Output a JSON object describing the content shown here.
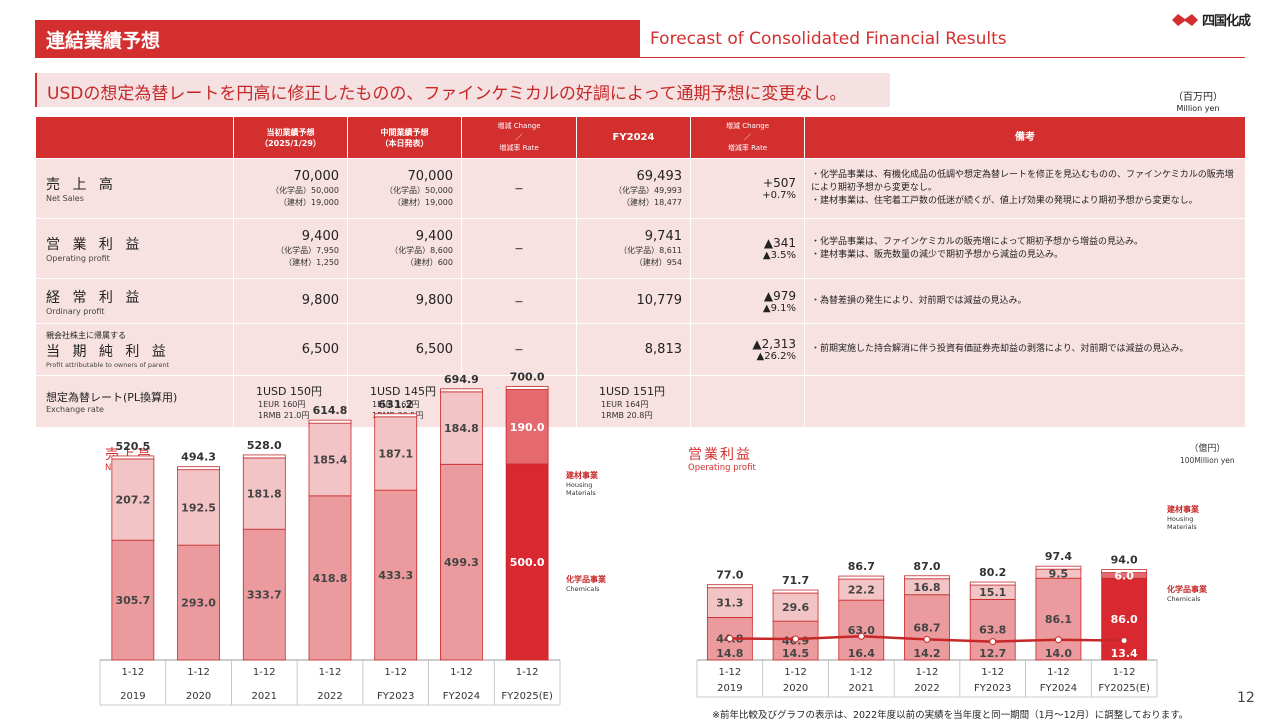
{
  "header": {
    "title_jp": "連結業績予想",
    "title_en": "Forecast of Consolidated Financial Results",
    "logo_text": "四国化成",
    "accent_color": "#d32f2f"
  },
  "headline": "USDの想定為替レートを円高に修正したものの、ファインケミカルの好調によって通期予想に変更なし。",
  "unit": {
    "jp": "（百万円）",
    "en": "Million yen"
  },
  "table": {
    "headers": {
      "col1": "当初業績予想",
      "col1b": "（2025/1/29）",
      "col2": "中間業績予想",
      "col2b": "（本日発表）",
      "chg1a": "増減 Change",
      "chg1b": "／",
      "chg1c": "増減率 Rate",
      "fy": "FY2024",
      "chg2a": "増減 Change",
      "chg2b": "／",
      "chg2c": "増減率 Rate",
      "remarks": "備考"
    },
    "rows": [
      {
        "label_jp": "売 上 高",
        "label_en": "Net Sales",
        "initial": "70,000",
        "initial_sub1": "（化学品）50,000",
        "initial_sub2": "（建材）19,000",
        "interim": "70,000",
        "interim_sub1": "（化学品）50,000",
        "interim_sub2": "（建材）19,000",
        "change1": "－",
        "fy2024": "69,493",
        "fy_sub1": "（化学品）49,993",
        "fy_sub2": "（建材）18,477",
        "change2": "+507",
        "rate2": "+0.7%",
        "note1": "・化学品事業は、有機化成品の低調や想定為替レートを修正を見込むものの、ファインケミカルの販売増により期初予想から変更なし。",
        "note2": "・建材事業は、住宅着工戸数の低迷が続くが、値上げ効果の発現により期初予想から変更なし。"
      },
      {
        "label_jp": "営 業 利 益",
        "label_en": "Operating profit",
        "initial": "9,400",
        "initial_sub1": "（化学品）7,950",
        "initial_sub2": "（建材）1,250",
        "interim": "9,400",
        "interim_sub1": "（化学品）8,600",
        "interim_sub2": "（建材）600",
        "change1": "－",
        "fy2024": "9,741",
        "fy_sub1": "（化学品）8,611",
        "fy_sub2": "（建材）954",
        "change2": "▲341",
        "rate2": "▲3.5%",
        "note1": "・化学品事業は、ファインケミカルの販売増によって期初予想から増益の見込み。",
        "note2": "・建材事業は、販売数量の減少で期初予想から減益の見込み。"
      },
      {
        "label_jp": "経 常 利 益",
        "label_en": "Ordinary profit",
        "initial": "9,800",
        "interim": "9,800",
        "change1": "－",
        "fy2024": "10,779",
        "change2": "▲979",
        "rate2": "▲9.1%",
        "note1": "・為替差損の発生により、対前期では減益の見込み。"
      },
      {
        "label_small": "親会社株主に帰属する",
        "label_jp": "当 期 純 利 益",
        "label_en": "Profit attributable to owners of parent",
        "initial": "6,500",
        "interim": "6,500",
        "change1": "－",
        "fy2024": "8,813",
        "change2": "▲2,313",
        "rate2": "▲26.2%",
        "note1": "・前期実施した持合解消に伴う投資有価証券売却益の剥落により、対前期では減益の見込み。"
      },
      {
        "label_jp": "想定為替レート(PL換算用)",
        "label_en": "Exchange rate",
        "initial": "1USD 150円",
        "initial_sub1": "1EUR 160円",
        "initial_sub2": "1RMB 21.0円",
        "interim": "1USD 145円",
        "interim_sub1": "1EUR 165円",
        "interim_sub2": "1RMB 20.5円",
        "fy2024": "1USD 151円",
        "fy_sub1": "1EUR 164円",
        "fy_sub2": "1RMB 20.8円"
      }
    ]
  },
  "chart_data": [
    {
      "type": "bar",
      "title": "売上高",
      "subtitle": "Net sales",
      "categories": [
        "1-12",
        "1-12",
        "1-12",
        "1-12",
        "1-12",
        "1-12",
        "1-12"
      ],
      "category_years": [
        "2019",
        "2020",
        "2021",
        "2022",
        "FY2023",
        "FY2024",
        "FY2025(E)"
      ],
      "series": [
        {
          "name": "化学品事業",
          "name_en": "Chemicals",
          "values": [
            305.7,
            293.0,
            333.7,
            418.8,
            433.3,
            499.3,
            500.0
          ]
        },
        {
          "name": "建材事業",
          "name_en": "Housing Materials",
          "values": [
            207.2,
            192.5,
            181.8,
            185.4,
            187.1,
            184.8,
            190.0
          ]
        }
      ],
      "totals": [
        520.5,
        494.3,
        528.0,
        614.8,
        631.2,
        694.9,
        700.0
      ],
      "ylim": [
        0,
        700
      ]
    },
    {
      "type": "bar",
      "title": "営業利益",
      "subtitle": "Operating profit",
      "unit_jp": "（億円）",
      "unit_en": "100Million yen",
      "categories": [
        "1-12",
        "1-12",
        "1-12",
        "1-12",
        "1-12",
        "1-12",
        "1-12"
      ],
      "category_years": [
        "2019",
        "2020",
        "2021",
        "2022",
        "FY2023",
        "FY2024",
        "FY2025(E)"
      ],
      "series": [
        {
          "name": "化学品事業",
          "name_en": "Chemicals",
          "values": [
            44.8,
            40.9,
            63.0,
            68.7,
            63.8,
            86.1,
            86.0
          ]
        },
        {
          "name": "建材事業",
          "name_en": "Housing Materials",
          "values": [
            31.3,
            29.6,
            22.2,
            16.8,
            15.1,
            9.5,
            6.0
          ]
        },
        {
          "type": "line",
          "values": [
            14.8,
            14.5,
            16.4,
            14.2,
            12.7,
            14.0,
            13.4
          ]
        }
      ],
      "totals": [
        77.0,
        71.7,
        86.7,
        87.0,
        80.2,
        97.4,
        94.0
      ],
      "ylim": [
        0,
        100
      ]
    }
  ],
  "footnote": "※前年比較及びグラフの表示は、2022年度以前の実績を当年度と同一期間（1月～12月）に調整しております。",
  "page_number": "12"
}
